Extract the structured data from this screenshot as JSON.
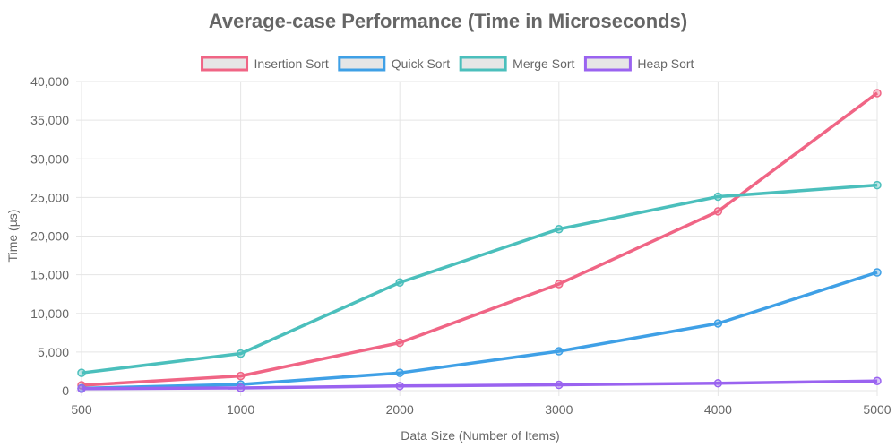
{
  "chart_data": {
    "type": "line",
    "title": "Average-case Performance (Time in Microseconds)",
    "xlabel": "Data Size (Number of Items)",
    "ylabel": "Time (µs)",
    "categories": [
      "500",
      "1000",
      "2000",
      "3000",
      "4000",
      "5000"
    ],
    "ylim": [
      0,
      40000
    ],
    "yticks": [
      0,
      5000,
      10000,
      15000,
      20000,
      25000,
      30000,
      35000,
      40000
    ],
    "ytick_labels": [
      "0",
      "5,000",
      "10,000",
      "15,000",
      "20,000",
      "25,000",
      "30,000",
      "35,000",
      "40,000"
    ],
    "grid": true,
    "legend_position": "top",
    "series": [
      {
        "name": "Insertion Sort",
        "color": "#f06585",
        "values": [
          700,
          1900,
          6200,
          13800,
          23200,
          38500
        ]
      },
      {
        "name": "Quick Sort",
        "color": "#3fa0e6",
        "values": [
          300,
          800,
          2300,
          5100,
          8700,
          15300
        ]
      },
      {
        "name": "Merge Sort",
        "color": "#4bbfbc",
        "values": [
          2300,
          4800,
          14000,
          20900,
          25100,
          26600
        ]
      },
      {
        "name": "Heap Sort",
        "color": "#9a63f0",
        "values": [
          250,
          350,
          600,
          750,
          950,
          1250
        ]
      }
    ]
  }
}
